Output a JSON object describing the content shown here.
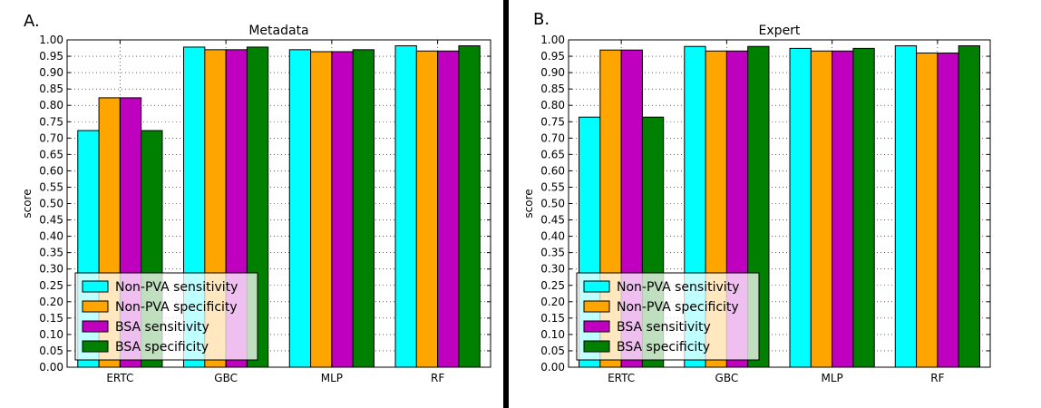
{
  "panels": [
    {
      "panel_label": "A.",
      "chart_data": {
        "type": "bar",
        "title": "Metadata",
        "xlabel": "",
        "ylabel": "score",
        "categories": [
          "ERTC",
          "GBC",
          "MLP",
          "RF"
        ],
        "ylim": [
          0,
          1.0
        ],
        "yticks": [
          "0.00",
          "0.05",
          "0.10",
          "0.15",
          "0.20",
          "0.25",
          "0.30",
          "0.35",
          "0.40",
          "0.45",
          "0.50",
          "0.55",
          "0.60",
          "0.65",
          "0.70",
          "0.75",
          "0.80",
          "0.85",
          "0.90",
          "0.95",
          "1.00"
        ],
        "grid": true,
        "legend_position": "lower-left",
        "series": [
          {
            "name": "Non-PVA sensitivity",
            "color": "#00ffff",
            "values": [
              0.723,
              0.978,
              0.97,
              0.982
            ]
          },
          {
            "name": "Non-PVA specificity",
            "color": "#ffa500",
            "values": [
              0.823,
              0.97,
              0.964,
              0.966
            ]
          },
          {
            "name": "BSA sensitivity",
            "color": "#bf00bf",
            "values": [
              0.823,
              0.97,
              0.964,
              0.966
            ]
          },
          {
            "name": "BSA specificity",
            "color": "#008000",
            "values": [
              0.723,
              0.978,
              0.97,
              0.982
            ]
          }
        ]
      }
    },
    {
      "panel_label": "B.",
      "chart_data": {
        "type": "bar",
        "title": "Expert",
        "xlabel": "",
        "ylabel": "score",
        "categories": [
          "ERTC",
          "GBC",
          "MLP",
          "RF"
        ],
        "ylim": [
          0,
          1.0
        ],
        "yticks": [
          "0.00",
          "0.05",
          "0.10",
          "0.15",
          "0.20",
          "0.25",
          "0.30",
          "0.35",
          "0.40",
          "0.45",
          "0.50",
          "0.55",
          "0.60",
          "0.65",
          "0.70",
          "0.75",
          "0.80",
          "0.85",
          "0.90",
          "0.95",
          "1.00"
        ],
        "grid": true,
        "legend_position": "lower-left",
        "series": [
          {
            "name": "Non-PVA sensitivity",
            "color": "#00ffff",
            "values": [
              0.764,
              0.98,
              0.974,
              0.982
            ]
          },
          {
            "name": "Non-PVA specificity",
            "color": "#ffa500",
            "values": [
              0.969,
              0.966,
              0.966,
              0.96
            ]
          },
          {
            "name": "BSA sensitivity",
            "color": "#bf00bf",
            "values": [
              0.969,
              0.966,
              0.966,
              0.96
            ]
          },
          {
            "name": "BSA specificity",
            "color": "#008000",
            "values": [
              0.764,
              0.98,
              0.974,
              0.982
            ]
          }
        ]
      }
    }
  ]
}
